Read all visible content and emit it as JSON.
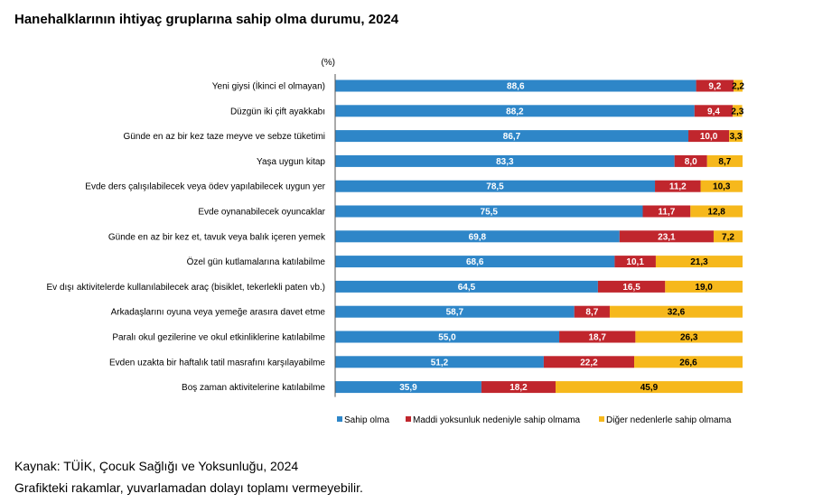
{
  "title": "Hanehalklarının ihtiyaç gruplarına sahip olma durumu, 2024",
  "source": "Kaynak: TÜİK, Çocuk Sağlığı ve Yoksunluğu, 2024",
  "note": "Grafikteki rakamlar, yuvarlamadan dolayı toplamı vermeyebilir.",
  "chart_data": {
    "type": "bar",
    "orientation": "horizontal",
    "stacked": true,
    "unit_label": "(%)",
    "xlim": [
      0,
      100
    ],
    "grid": false,
    "legend_position": "bottom",
    "categories": [
      "Yeni giysi (İkinci el olmayan)",
      "Düzgün iki çift ayakkabı",
      "Günde en az bir kez taze meyve ve sebze tüketimi",
      "Yaşa uygun kitap",
      "Evde ders çalışılabilecek veya ödev yapılabilecek uygun yer",
      "Evde oynanabilecek oyuncaklar",
      "Günde en az bir kez et, tavuk veya balık içeren yemek",
      "Özel gün kutlamalarına katılabilme",
      "Ev dışı aktivitelerde kullanılabilecek araç (bisiklet, tekerlekli paten vb.)",
      "Arkadaşlarını oyuna veya yemeğe arasıra davet etme",
      "Paralı okul gezilerine ve okul etkinliklerine katılabilme",
      "Evden uzakta bir haftalık tatil masrafını karşılayabilme",
      "Boş zaman aktivitelerine katılabilme"
    ],
    "series": [
      {
        "name": "Sahip olma",
        "color": "#2e86c8",
        "values": [
          88.6,
          88.2,
          86.7,
          83.3,
          78.5,
          75.5,
          69.8,
          68.6,
          64.5,
          58.7,
          55.0,
          51.2,
          35.9
        ],
        "labels": [
          "88,6",
          "88,2",
          "86,7",
          "83,3",
          "78,5",
          "75,5",
          "69,8",
          "68,6",
          "64,5",
          "58,7",
          "55,0",
          "51,2",
          "35,9"
        ]
      },
      {
        "name": "Maddi yoksunluk nedeniyle sahip olmama",
        "color": "#c0262d",
        "values": [
          9.2,
          9.4,
          10.0,
          8.0,
          11.2,
          11.7,
          23.1,
          10.1,
          16.5,
          8.7,
          18.7,
          22.2,
          18.2
        ],
        "labels": [
          "9,2",
          "9,4",
          "10,0",
          "8,0",
          "11,2",
          "11,7",
          "23,1",
          "10,1",
          "16,5",
          "8,7",
          "18,7",
          "22,2",
          "18,2"
        ]
      },
      {
        "name": "Diğer nedenlerle sahip olmama",
        "color": "#f6b81c",
        "values": [
          2.2,
          2.3,
          3.3,
          8.7,
          10.3,
          12.8,
          7.2,
          21.3,
          19.0,
          32.6,
          26.3,
          26.6,
          45.9
        ],
        "labels": [
          "2,2",
          "2,3",
          "3,3",
          "8,7",
          "10,3",
          "12,8",
          "7,2",
          "21,3",
          "19,0",
          "32,6",
          "26,3",
          "26,6",
          "45,9"
        ]
      }
    ]
  }
}
